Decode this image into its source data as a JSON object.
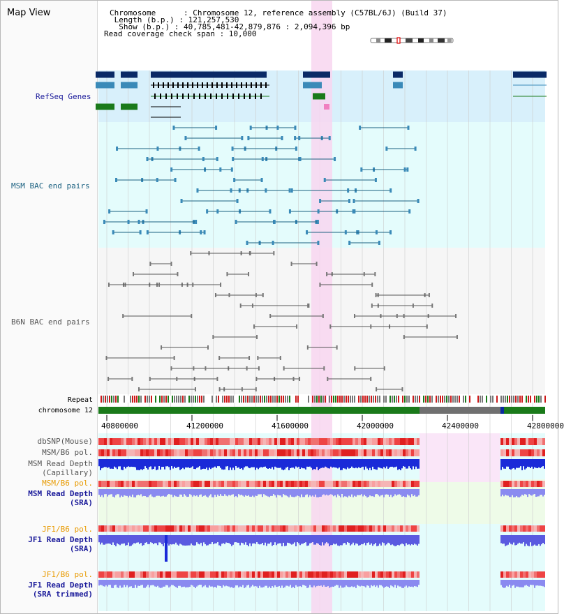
{
  "app": {
    "title": "Map View"
  },
  "header": {
    "lines": [
      {
        "key": "Chromosome",
        "sep": ":",
        "value": "Chromosome 12, reference assembly (C57BL/6J) (Build 37)"
      },
      {
        "key": "Length (b.p.)",
        "sep": ":",
        "value": "121,257,530"
      },
      {
        "key": "Show (b.p.)",
        "sep": ":",
        "value": "40,785,481-42,879,876 : 2,094,396 bp"
      },
      {
        "key": "Read coverage check span",
        "sep": ":",
        "value": "10,000"
      }
    ],
    "text": [
      "Chromosome      : Chromosome 12, reference assembly (C57BL/6J) (Build 37)",
      " Length (b.p.) : 121,257,530",
      "  Show (b.p.) : 40,785,481-42,879,876 : 2,094,396 bp",
      "Read coverage check span : 10,000"
    ]
  },
  "tracks": {
    "refseq": "RefSeq Genes",
    "msm_bac": "MSM BAC end pairs",
    "b6n_bac": "B6N BAC end pairs",
    "repeat": "Repeat",
    "chromosome": "chromosome 12",
    "dbsnp": "dbSNP(Mouse)",
    "msm_b6_pol_1": "MSM/B6 pol.",
    "msm_read_depth_cap": [
      "MSM Read Depth",
      "(Capillary)"
    ],
    "msm_b6_pol_2": "MSM/B6 pol.",
    "msm_read_depth_sra": [
      "MSM Read Depth",
      "(SRA)"
    ],
    "jf1_b6_pol_1": "JF1/B6 pol.",
    "jf1_read_depth_sra": [
      "JF1 Read Depth",
      "(SRA)"
    ],
    "jf1_b6_pol_2": "JF1/B6 pol.",
    "jf1_read_depth_trim": [
      "JF1 Read Depth",
      "(SRA trimmed)"
    ]
  },
  "axis": {
    "ticks": [
      "40800000",
      "41200000",
      "41600000",
      "42000000",
      "42400000",
      "42800000"
    ]
  },
  "colors": {
    "refseq_label": "#1a1a9a",
    "msm_label": "#1a6080",
    "b6n_label": "#555555",
    "pol_orange": "#e89a00",
    "depth_blue": "#1a1a9a",
    "refseq_bg": "#d8f0fb",
    "msm_bg": "#e4fcfc",
    "highlight": "#f8d6f0",
    "chrom_green": "#1a7a1a",
    "chrom_gray": "#707070"
  }
}
